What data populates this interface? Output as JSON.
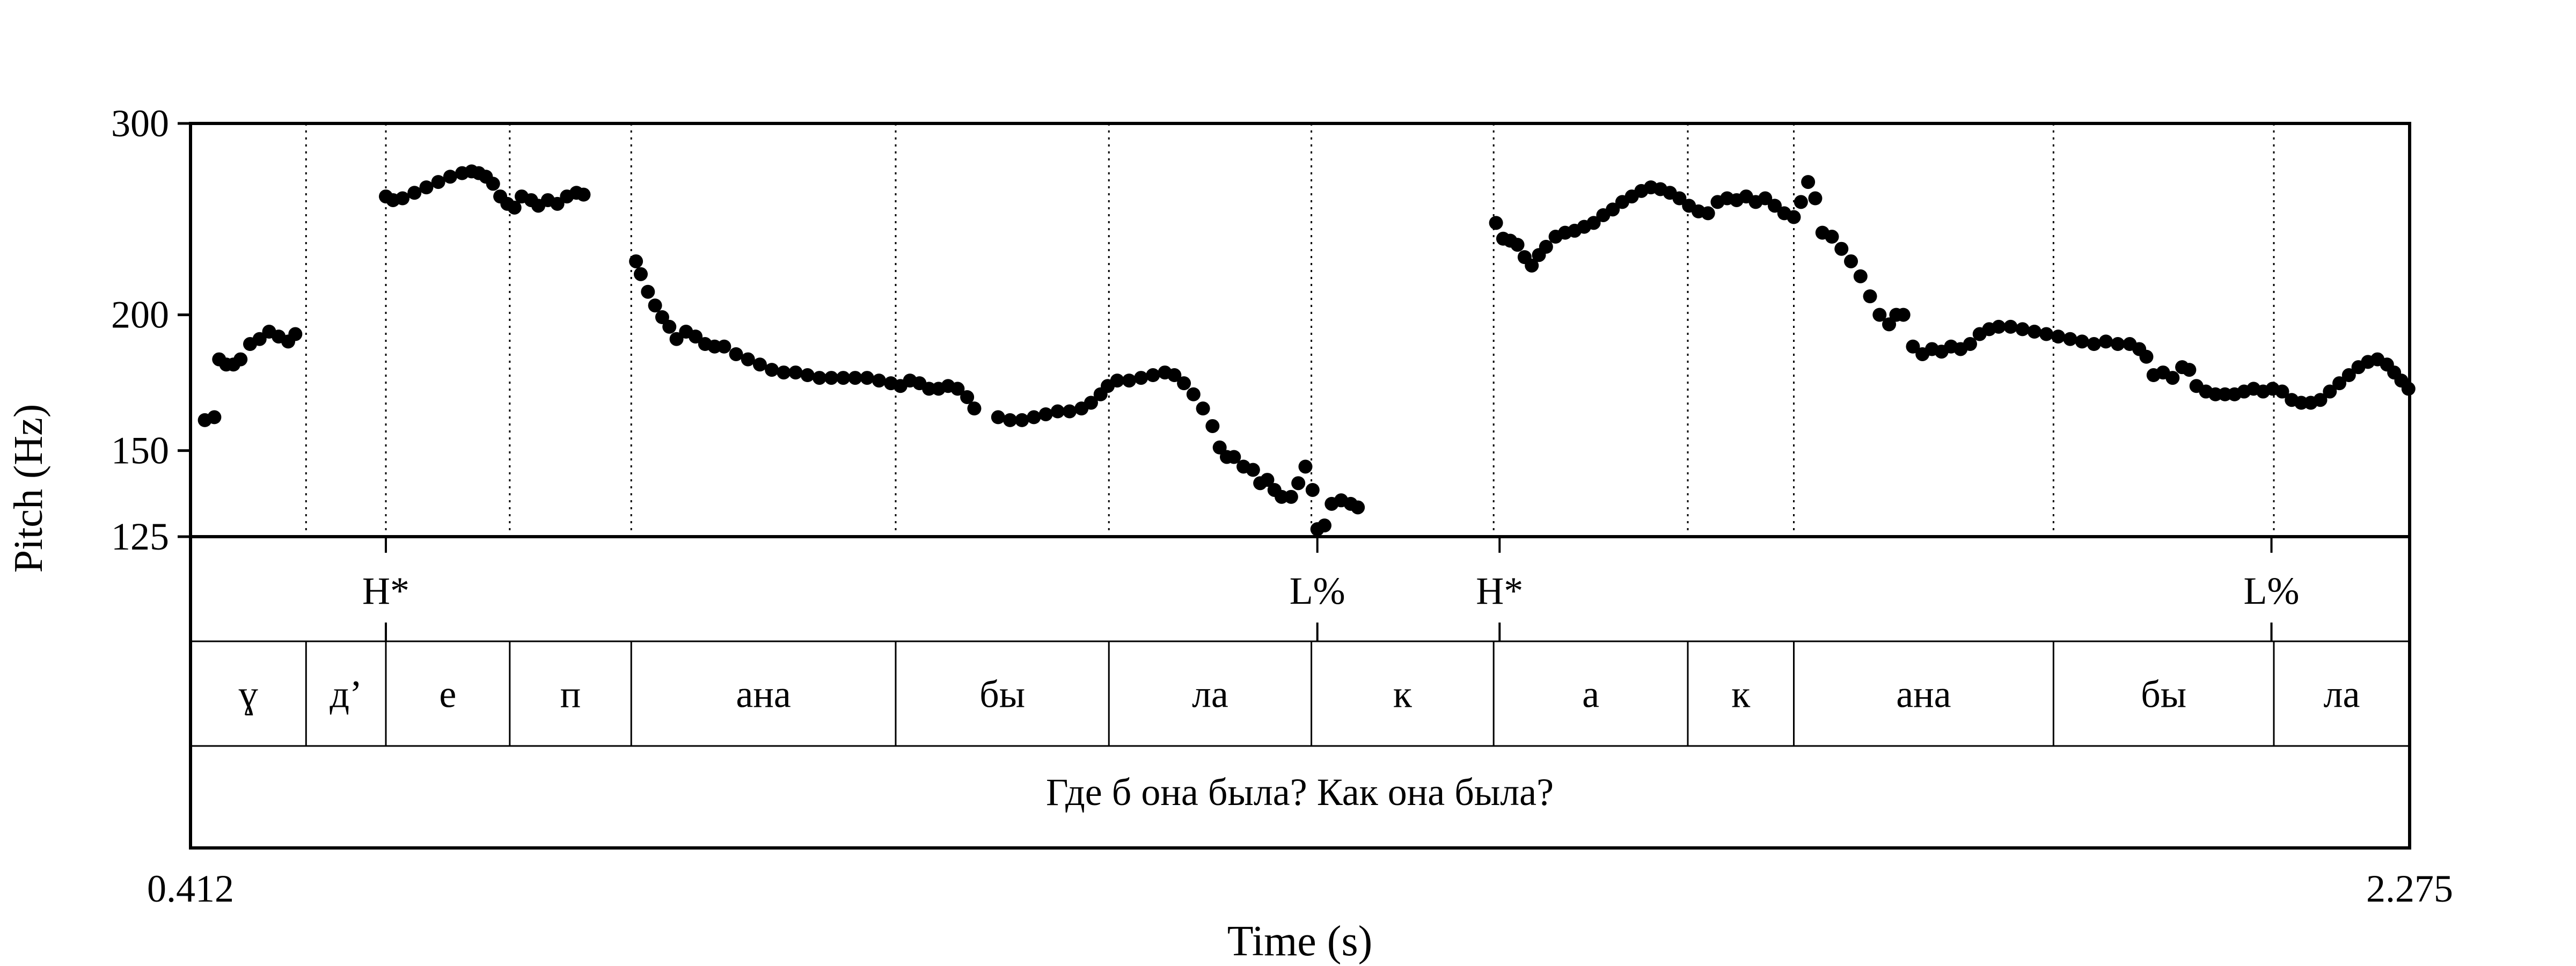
{
  "chart_data": {
    "type": "scatter",
    "x_axis": {
      "label": "Time (s)",
      "start_label": "0.412",
      "end_label": "2.275",
      "range": [
        0.412,
        2.275
      ]
    },
    "y_axis": {
      "label": "Pitch (Hz)",
      "scale": "log",
      "range": [
        125,
        300
      ],
      "ticks": [
        125,
        150,
        200,
        300
      ]
    },
    "tiers": {
      "tones": [
        {
          "label": "H*",
          "time": 0.576
        },
        {
          "label": "L%",
          "time": 1.358
        },
        {
          "label": "H*",
          "time": 1.511
        },
        {
          "label": "L%",
          "time": 2.159
        }
      ],
      "syllables": [
        {
          "label": "ɣ",
          "start": 0.412,
          "end": 0.509
        },
        {
          "label": "д’",
          "start": 0.509,
          "end": 0.576
        },
        {
          "label": "е",
          "start": 0.576,
          "end": 0.68
        },
        {
          "label": "п",
          "start": 0.68,
          "end": 0.782
        },
        {
          "label": "ана",
          "start": 0.782,
          "end": 1.004
        },
        {
          "label": "бы",
          "start": 1.004,
          "end": 1.183
        },
        {
          "label": "ла",
          "start": 1.183,
          "end": 1.353
        },
        {
          "label": "к",
          "start": 1.353,
          "end": 1.506
        },
        {
          "label": "а",
          "start": 1.506,
          "end": 1.669
        },
        {
          "label": "к",
          "start": 1.669,
          "end": 1.758
        },
        {
          "label": "ана",
          "start": 1.758,
          "end": 1.976
        },
        {
          "label": "бы",
          "start": 1.976,
          "end": 2.161
        },
        {
          "label": "ла",
          "start": 2.161,
          "end": 2.275
        }
      ],
      "sentence": "Где б она была? Как она была?"
    },
    "series": [
      {
        "values": [
          [
            0.424,
            160
          ],
          [
            0.432,
            161
          ],
          [
            0.436,
            182
          ],
          [
            0.442,
            180
          ],
          [
            0.448,
            180
          ],
          [
            0.454,
            182
          ],
          [
            0.462,
            188
          ],
          [
            0.47,
            190
          ],
          [
            0.478,
            193
          ],
          [
            0.486,
            191
          ],
          [
            0.494,
            189
          ],
          [
            0.5,
            192
          ],
          [
            0.576,
            257
          ],
          [
            0.582,
            255
          ],
          [
            0.59,
            256
          ],
          [
            0.6,
            259
          ],
          [
            0.61,
            262
          ],
          [
            0.62,
            265
          ],
          [
            0.63,
            268
          ],
          [
            0.64,
            270
          ],
          [
            0.648,
            271
          ],
          [
            0.654,
            270
          ],
          [
            0.66,
            268
          ],
          [
            0.666,
            264
          ],
          [
            0.672,
            257
          ],
          [
            0.678,
            253
          ],
          [
            0.684,
            251
          ],
          [
            0.69,
            257
          ],
          [
            0.698,
            255
          ],
          [
            0.704,
            252
          ],
          [
            0.712,
            255
          ],
          [
            0.72,
            253
          ],
          [
            0.728,
            257
          ],
          [
            0.736,
            259
          ],
          [
            0.742,
            258
          ],
          [
            0.786,
            224
          ],
          [
            0.79,
            218
          ],
          [
            0.796,
            210
          ],
          [
            0.802,
            204
          ],
          [
            0.808,
            199
          ],
          [
            0.814,
            195
          ],
          [
            0.82,
            190
          ],
          [
            0.828,
            193
          ],
          [
            0.836,
            191
          ],
          [
            0.844,
            188
          ],
          [
            0.852,
            187
          ],
          [
            0.86,
            187
          ],
          [
            0.87,
            184
          ],
          [
            0.88,
            182
          ],
          [
            0.89,
            180
          ],
          [
            0.9,
            178
          ],
          [
            0.91,
            177
          ],
          [
            0.92,
            177
          ],
          [
            0.93,
            176
          ],
          [
            0.94,
            175
          ],
          [
            0.95,
            175
          ],
          [
            0.96,
            175
          ],
          [
            0.97,
            175
          ],
          [
            0.98,
            175
          ],
          [
            0.99,
            174
          ],
          [
            1.0,
            173
          ],
          [
            1.008,
            172
          ],
          [
            1.016,
            174
          ],
          [
            1.024,
            173
          ],
          [
            1.032,
            171
          ],
          [
            1.04,
            171
          ],
          [
            1.048,
            172
          ],
          [
            1.056,
            171
          ],
          [
            1.064,
            168
          ],
          [
            1.07,
            164
          ],
          [
            1.09,
            161
          ],
          [
            1.1,
            160
          ],
          [
            1.11,
            160
          ],
          [
            1.12,
            161
          ],
          [
            1.13,
            162
          ],
          [
            1.14,
            163
          ],
          [
            1.15,
            163
          ],
          [
            1.16,
            164
          ],
          [
            1.168,
            166
          ],
          [
            1.176,
            169
          ],
          [
            1.182,
            172
          ],
          [
            1.19,
            174
          ],
          [
            1.2,
            174
          ],
          [
            1.21,
            175
          ],
          [
            1.22,
            176
          ],
          [
            1.23,
            177
          ],
          [
            1.238,
            176
          ],
          [
            1.246,
            173
          ],
          [
            1.254,
            169
          ],
          [
            1.262,
            164
          ],
          [
            1.27,
            158
          ],
          [
            1.276,
            151
          ],
          [
            1.282,
            148
          ],
          [
            1.288,
            148
          ],
          [
            1.296,
            145
          ],
          [
            1.304,
            144
          ],
          [
            1.31,
            140
          ],
          [
            1.316,
            141
          ],
          [
            1.322,
            138
          ],
          [
            1.328,
            136
          ],
          [
            1.336,
            136
          ],
          [
            1.342,
            140
          ],
          [
            1.348,
            145
          ],
          [
            1.354,
            138
          ],
          [
            1.358,
            127
          ],
          [
            1.364,
            128
          ],
          [
            1.37,
            134
          ],
          [
            1.378,
            135
          ],
          [
            1.386,
            134
          ],
          [
            1.392,
            133
          ],
          [
            1.508,
            243
          ],
          [
            1.514,
            235
          ],
          [
            1.52,
            234
          ],
          [
            1.526,
            232
          ],
          [
            1.532,
            226
          ],
          [
            1.538,
            222
          ],
          [
            1.544,
            227
          ],
          [
            1.55,
            231
          ],
          [
            1.558,
            236
          ],
          [
            1.566,
            238
          ],
          [
            1.574,
            239
          ],
          [
            1.582,
            241
          ],
          [
            1.59,
            243
          ],
          [
            1.598,
            247
          ],
          [
            1.606,
            250
          ],
          [
            1.614,
            254
          ],
          [
            1.622,
            257
          ],
          [
            1.63,
            260
          ],
          [
            1.638,
            262
          ],
          [
            1.646,
            261
          ],
          [
            1.654,
            259
          ],
          [
            1.662,
            256
          ],
          [
            1.67,
            252
          ],
          [
            1.678,
            249
          ],
          [
            1.686,
            248
          ],
          [
            1.694,
            254
          ],
          [
            1.702,
            256
          ],
          [
            1.71,
            255
          ],
          [
            1.718,
            257
          ],
          [
            1.726,
            254
          ],
          [
            1.734,
            256
          ],
          [
            1.742,
            252
          ],
          [
            1.75,
            248
          ],
          [
            1.758,
            246
          ],
          [
            1.764,
            254
          ],
          [
            1.77,
            265
          ],
          [
            1.776,
            256
          ],
          [
            1.782,
            238
          ],
          [
            1.79,
            236
          ],
          [
            1.798,
            230
          ],
          [
            1.806,
            224
          ],
          [
            1.814,
            217
          ],
          [
            1.822,
            208
          ],
          [
            1.83,
            200
          ],
          [
            1.838,
            196
          ],
          [
            1.844,
            200
          ],
          [
            1.85,
            200
          ],
          [
            1.858,
            187
          ],
          [
            1.866,
            184
          ],
          [
            1.874,
            186
          ],
          [
            1.882,
            185
          ],
          [
            1.89,
            187
          ],
          [
            1.898,
            186
          ],
          [
            1.906,
            188
          ],
          [
            1.914,
            192
          ],
          [
            1.922,
            194
          ],
          [
            1.93,
            195
          ],
          [
            1.94,
            195
          ],
          [
            1.95,
            194
          ],
          [
            1.96,
            193
          ],
          [
            1.97,
            192
          ],
          [
            1.98,
            191
          ],
          [
            1.99,
            190
          ],
          [
            2.0,
            189
          ],
          [
            2.01,
            188
          ],
          [
            2.02,
            189
          ],
          [
            2.03,
            188
          ],
          [
            2.04,
            188
          ],
          [
            2.048,
            186
          ],
          [
            2.054,
            183
          ],
          [
            2.06,
            176
          ],
          [
            2.068,
            177
          ],
          [
            2.076,
            175
          ],
          [
            2.084,
            179
          ],
          [
            2.09,
            178
          ],
          [
            2.096,
            172
          ],
          [
            2.104,
            170
          ],
          [
            2.112,
            169
          ],
          [
            2.12,
            169
          ],
          [
            2.128,
            169
          ],
          [
            2.136,
            170
          ],
          [
            2.144,
            171
          ],
          [
            2.152,
            170
          ],
          [
            2.16,
            171
          ],
          [
            2.168,
            170
          ],
          [
            2.176,
            167
          ],
          [
            2.184,
            166
          ],
          [
            2.192,
            166
          ],
          [
            2.2,
            167
          ],
          [
            2.208,
            170
          ],
          [
            2.216,
            173
          ],
          [
            2.224,
            176
          ],
          [
            2.232,
            179
          ],
          [
            2.24,
            181
          ],
          [
            2.248,
            182
          ],
          [
            2.256,
            180
          ],
          [
            2.262,
            177
          ],
          [
            2.268,
            174
          ],
          [
            2.274,
            171
          ]
        ]
      }
    ],
    "grid": "dotted vertical lines at syllable boundaries",
    "legend": "none"
  }
}
